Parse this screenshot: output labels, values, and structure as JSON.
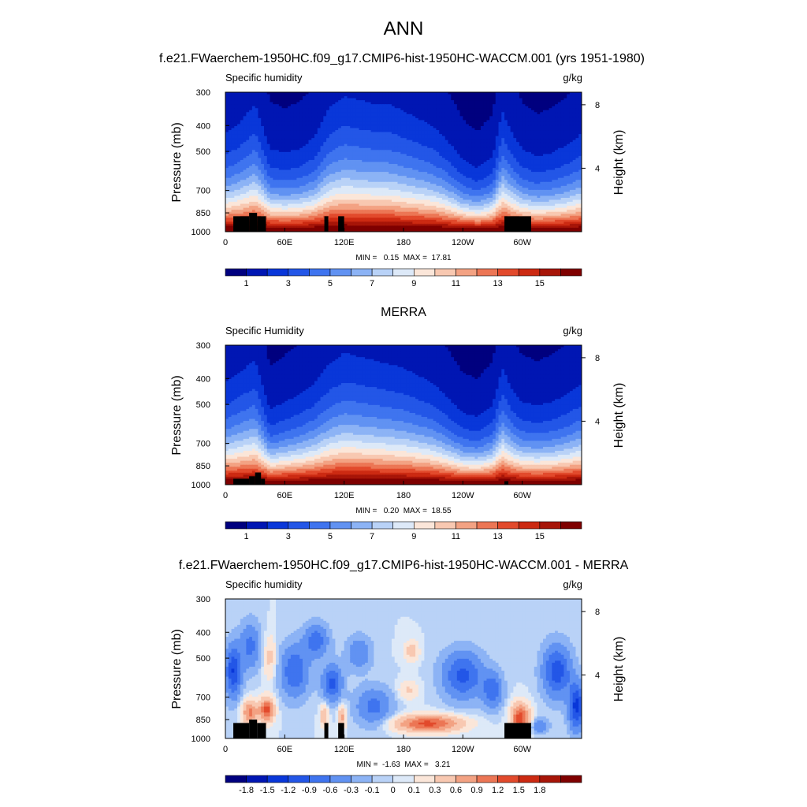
{
  "figure": {
    "title": "ANN",
    "subtitles": [
      "f.e21.FWaerchem-1950HC.f09_g17.CMIP6-hist-1950HC-WACCM.001 (yrs 1951-1980)",
      "MERRA",
      "f.e21.FWaerchem-1950HC.f09_g17.CMIP6-hist-1950HC-WACCM.001 - MERRA"
    ]
  },
  "colors": {
    "abs_palette": [
      "#00007f",
      "#0016b3",
      "#0937d9",
      "#2356e7",
      "#3f74ef",
      "#6192f2",
      "#8cb3f5",
      "#b9d2f7",
      "#dde9f8",
      "#fbe6d9",
      "#f8c8b1",
      "#f3a283",
      "#ec7655",
      "#e24a2c",
      "#cc2a12",
      "#a71508",
      "#7f0000"
    ],
    "diff_palette": [
      "#00007f",
      "#0016b3",
      "#0937d9",
      "#2356e7",
      "#3f74ef",
      "#6192f2",
      "#8cb3f5",
      "#b9d2f7",
      "#dde9f8",
      "#fbe6d9",
      "#f8c8b1",
      "#f3a283",
      "#ec7655",
      "#e24a2c",
      "#cc2a12",
      "#a71508",
      "#7f0000"
    ],
    "land": "#000000"
  },
  "chart_data": [
    {
      "type": "heatmap",
      "panel": "model",
      "left_label": "Specific humidity",
      "right_label": "g/kg",
      "xlabel": "",
      "ylabel": "Pressure (mb)",
      "y2label": "Height (km)",
      "x_ticks": [
        "0",
        "60E",
        "120E",
        "180",
        "120W",
        "60W"
      ],
      "x_tick_values": [
        0,
        60,
        120,
        180,
        240,
        300
      ],
      "xlim": [
        0,
        360
      ],
      "y_ticks": [
        300,
        400,
        500,
        700,
        850,
        1000
      ],
      "ylim": [
        1000,
        300
      ],
      "y_scale": "log",
      "y2_ticks": [
        8,
        4
      ],
      "stats": "MIN =   0.15  MAX =  17.81",
      "colorbar_labels": [
        "1",
        "3",
        "5",
        "7",
        "9",
        "11",
        "13",
        "15"
      ],
      "colorbar_levels": [
        0,
        1,
        2,
        3,
        4,
        5,
        6,
        7,
        8,
        9,
        10,
        11,
        12,
        13,
        14,
        15,
        16
      ],
      "surface_scale_height_km": 8,
      "moisture_profile_lon": [
        0,
        15,
        30,
        45,
        60,
        75,
        90,
        105,
        120,
        135,
        150,
        165,
        180,
        195,
        210,
        225,
        240,
        255,
        270,
        280,
        290,
        300,
        315,
        330,
        345,
        360
      ],
      "moisture_profile_scale_km": [
        2.6,
        2.9,
        3.4,
        2.2,
        2.1,
        2.2,
        2.5,
        3.3,
        3.6,
        3.5,
        3.4,
        3.4,
        3.2,
        3.0,
        2.8,
        2.4,
        1.9,
        1.7,
        2.0,
        3.2,
        2.6,
        2.2,
        2.0,
        2.1,
        2.3,
        2.6
      ],
      "terrain": [
        {
          "lon": [
            8,
            24
          ],
          "top_mb": 875
        },
        {
          "lon": [
            24,
            32
          ],
          "top_mb": 850
        },
        {
          "lon": [
            32,
            41
          ],
          "top_mb": 875
        },
        {
          "lon": [
            100,
            104
          ],
          "top_mb": 875
        },
        {
          "lon": [
            114,
            120
          ],
          "top_mb": 875
        },
        {
          "lon": [
            282,
            309
          ],
          "top_mb": 875
        }
      ]
    },
    {
      "type": "heatmap",
      "panel": "obs",
      "left_label": "Specific Humidity",
      "right_label": "g/kg",
      "xlabel": "",
      "ylabel": "Pressure (mb)",
      "y2label": "Height (km)",
      "x_ticks": [
        "0",
        "60E",
        "120E",
        "180",
        "120W",
        "60W"
      ],
      "x_tick_values": [
        0,
        60,
        120,
        180,
        240,
        300
      ],
      "xlim": [
        0,
        360
      ],
      "y_ticks": [
        300,
        400,
        500,
        700,
        850,
        1000
      ],
      "ylim": [
        1000,
        300
      ],
      "y_scale": "log",
      "y2_ticks": [
        8,
        4
      ],
      "stats": "MIN =   0.20  MAX =  18.55",
      "colorbar_labels": [
        "1",
        "3",
        "5",
        "7",
        "9",
        "11",
        "13",
        "15"
      ],
      "colorbar_levels": [
        0,
        1,
        2,
        3,
        4,
        5,
        6,
        7,
        8,
        9,
        10,
        11,
        12,
        13,
        14,
        15,
        16
      ],
      "surface_scale_height_km": 8,
      "moisture_profile_lon": [
        0,
        15,
        30,
        45,
        60,
        75,
        90,
        105,
        120,
        135,
        150,
        165,
        180,
        195,
        210,
        225,
        240,
        255,
        270,
        280,
        290,
        300,
        315,
        330,
        345,
        360
      ],
      "moisture_profile_scale_km": [
        2.7,
        3.0,
        3.3,
        2.0,
        2.2,
        2.4,
        2.7,
        3.2,
        3.5,
        3.4,
        3.3,
        3.2,
        3.1,
        2.9,
        2.7,
        2.3,
        1.9,
        1.8,
        2.1,
        3.1,
        2.5,
        2.2,
        2.1,
        2.2,
        2.4,
        2.7
      ],
      "terrain": [
        {
          "lon": [
            8,
            24
          ],
          "top_mb": 950
        },
        {
          "lon": [
            24,
            30
          ],
          "top_mb": 930
        },
        {
          "lon": [
            30,
            36
          ],
          "top_mb": 900
        },
        {
          "lon": [
            36,
            40
          ],
          "top_mb": 950
        },
        {
          "lon": [
            282,
            286
          ],
          "top_mb": 970
        }
      ]
    },
    {
      "type": "heatmap",
      "panel": "diff",
      "left_label": "Specific humidity",
      "right_label": "g/kg",
      "xlabel": "",
      "ylabel": "Pressure (mb)",
      "y2label": "Height (km)",
      "x_ticks": [
        "0",
        "60E",
        "120E",
        "180",
        "120W",
        "60W"
      ],
      "x_tick_values": [
        0,
        60,
        120,
        180,
        240,
        300
      ],
      "xlim": [
        0,
        360
      ],
      "y_ticks": [
        300,
        400,
        500,
        700,
        850,
        1000
      ],
      "ylim": [
        1000,
        300
      ],
      "y_scale": "log",
      "y2_ticks": [
        8,
        4
      ],
      "stats": "MIN =  -1.63  MAX =   3.21",
      "colorbar_labels": [
        "-1.8",
        "-1.5",
        "-1.2",
        "-0.9",
        "-0.6",
        "-0.3",
        "-0.1",
        "0",
        "0.1",
        "0.3",
        "0.6",
        "0.9",
        "1.2",
        "1.5",
        "1.8"
      ],
      "colorbar_levels": [
        -1.8,
        -1.5,
        -1.2,
        -0.9,
        -0.6,
        -0.3,
        -0.1,
        0,
        0.1,
        0.3,
        0.6,
        0.9,
        1.2,
        1.5,
        1.8
      ],
      "anomalies": [
        {
          "lon": 8,
          "mb": 560,
          "dlon": 8,
          "dlogp": 0.22,
          "value": -1.2
        },
        {
          "lon": 25,
          "mb": 450,
          "dlon": 10,
          "dlogp": 0.2,
          "value": -0.7
        },
        {
          "lon": 25,
          "mb": 800,
          "dlon": 8,
          "dlogp": 0.1,
          "value": 1.0
        },
        {
          "lon": 42,
          "mb": 780,
          "dlon": 7,
          "dlogp": 0.1,
          "value": 1.3
        },
        {
          "lon": 45,
          "mb": 500,
          "dlon": 6,
          "dlogp": 0.18,
          "value": 0.4
        },
        {
          "lon": 70,
          "mb": 560,
          "dlon": 14,
          "dlogp": 0.22,
          "value": -0.9
        },
        {
          "lon": 92,
          "mb": 430,
          "dlon": 12,
          "dlogp": 0.14,
          "value": -0.8
        },
        {
          "lon": 108,
          "mb": 620,
          "dlon": 10,
          "dlogp": 0.15,
          "value": -1.0
        },
        {
          "lon": 100,
          "mb": 820,
          "dlon": 4,
          "dlogp": 0.1,
          "value": 0.6
        },
        {
          "lon": 118,
          "mb": 830,
          "dlon": 4,
          "dlogp": 0.1,
          "value": 0.7
        },
        {
          "lon": 135,
          "mb": 480,
          "dlon": 12,
          "dlogp": 0.14,
          "value": -0.6
        },
        {
          "lon": 150,
          "mb": 760,
          "dlon": 18,
          "dlogp": 0.16,
          "value": -0.7
        },
        {
          "lon": 185,
          "mb": 660,
          "dlon": 10,
          "dlogp": 0.08,
          "value": 0.35
        },
        {
          "lon": 188,
          "mb": 470,
          "dlon": 7,
          "dlogp": 0.08,
          "value": 0.5
        },
        {
          "lon": 205,
          "mb": 880,
          "dlon": 32,
          "dlogp": 0.07,
          "value": 1.3
        },
        {
          "lon": 240,
          "mb": 580,
          "dlon": 20,
          "dlogp": 0.2,
          "value": -1.0
        },
        {
          "lon": 270,
          "mb": 660,
          "dlon": 10,
          "dlogp": 0.15,
          "value": -0.8
        },
        {
          "lon": 298,
          "mb": 840,
          "dlon": 9,
          "dlogp": 0.12,
          "value": 1.4
        },
        {
          "lon": 318,
          "mb": 900,
          "dlon": 8,
          "dlogp": 0.06,
          "value": -0.6
        },
        {
          "lon": 335,
          "mb": 560,
          "dlon": 14,
          "dlogp": 0.22,
          "value": -1.1
        },
        {
          "lon": 355,
          "mb": 760,
          "dlon": 8,
          "dlogp": 0.2,
          "value": -1.3
        }
      ],
      "terrain": [
        {
          "lon": [
            8,
            24
          ],
          "top_mb": 875
        },
        {
          "lon": [
            24,
            32
          ],
          "top_mb": 850
        },
        {
          "lon": [
            32,
            41
          ],
          "top_mb": 875
        },
        {
          "lon": [
            100,
            104
          ],
          "top_mb": 875
        },
        {
          "lon": [
            114,
            120
          ],
          "top_mb": 875
        },
        {
          "lon": [
            282,
            309
          ],
          "top_mb": 875
        }
      ]
    }
  ]
}
